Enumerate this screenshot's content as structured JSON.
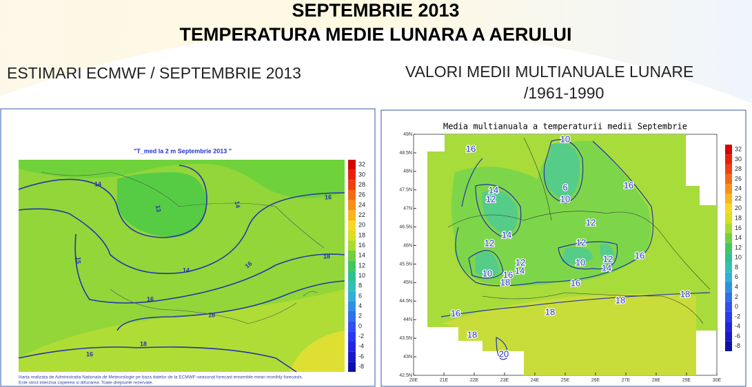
{
  "header": {
    "title_line1": "SEPTEMBRIE 2013",
    "title_line2": "TEMPERATURA MEDIE LUNARA A AERULUI"
  },
  "left_panel": {
    "caption": "ESTIMARI ECMWF / SEPTEMBRIE 2013",
    "map_title": "\"T_med la 2 m Septembrie 2013 \"",
    "colorbar": [
      32,
      30,
      28,
      26,
      24,
      22,
      20,
      18,
      16,
      14,
      12,
      10,
      8,
      6,
      4,
      2,
      0,
      -2,
      -4,
      -6,
      -8
    ],
    "contour_labels": [
      14,
      13,
      14,
      16,
      15,
      16,
      14,
      16,
      18,
      18,
      16,
      18
    ],
    "footnote": [
      "Harta realizata de Administratia Nationala de Meteorologie pe baza datelor de la ECMWF-seasonal forecast ensemble mean monthly forecasts.",
      "Este strict interzisa copierea si difuzarea. Toate drepturile rezervate."
    ]
  },
  "right_panel": {
    "caption_line1": "VALORI MEDII MULTIANUALE LUNARE",
    "caption_line2": "/1961-1990",
    "map_title": "Media multianuala a temperaturii medii Septembrie",
    "lat_labels": [
      "49N",
      "48.5N",
      "48N",
      "47.5N",
      "47N",
      "46.5N",
      "46N",
      "45.5N",
      "45N",
      "44.5N",
      "44N",
      "43.5N",
      "43N",
      "42.5N"
    ],
    "lon_labels": [
      "20E",
      "21E",
      "22E",
      "23E",
      "24E",
      "25E",
      "26E",
      "27E",
      "28E",
      "29E",
      "30E"
    ],
    "colorbar": [
      32,
      30,
      28,
      26,
      24,
      22,
      20,
      18,
      16,
      14,
      12,
      10,
      8,
      6,
      4,
      2,
      0,
      -2,
      -4,
      -6,
      -8
    ],
    "contour_labels": [
      16,
      10,
      6,
      10,
      16,
      14,
      12,
      12,
      14,
      12,
      12,
      10,
      12,
      14,
      12,
      14,
      10,
      16,
      18,
      16,
      16,
      18,
      18,
      18,
      16,
      18,
      20
    ]
  }
}
